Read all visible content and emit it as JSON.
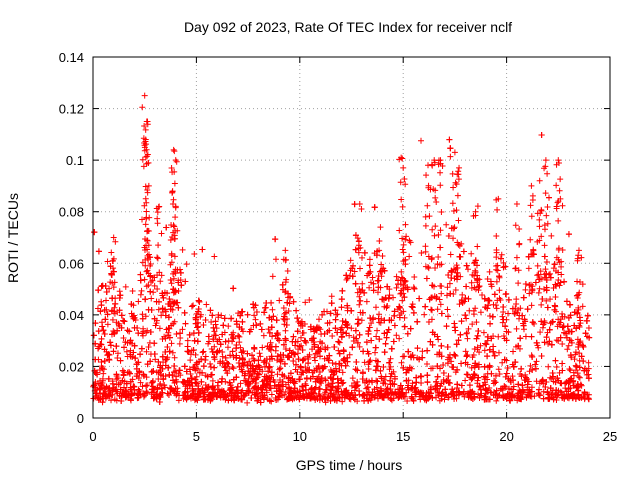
{
  "chart_data": {
    "type": "scatter",
    "title": "Day 092 of 2023, Rate Of TEC Index for receiver nclf",
    "xlabel": "GPS time / hours",
    "ylabel": "ROTI / TECUs",
    "xlim": [
      0,
      25
    ],
    "ylim": [
      0,
      0.14
    ],
    "x_ticks": [
      0,
      5,
      10,
      15,
      20,
      25
    ],
    "x_tick_labels": [
      "0",
      "5",
      "10",
      "15",
      "20",
      "25"
    ],
    "y_ticks": [
      0,
      0.02,
      0.04,
      0.06,
      0.08,
      0.1,
      0.12,
      0.14
    ],
    "y_tick_labels": [
      "0",
      "0.02",
      "0.04",
      "0.06",
      "0.08",
      "0.1",
      "0.12",
      "0.14"
    ],
    "grid": true,
    "marker": "+",
    "marker_color": "#ff0000",
    "data_x_range": [
      0,
      24
    ],
    "series": [
      {
        "name": "ROTI",
        "description_points": "dense scatter; baseline 0.005-0.04 TECU/s across 0-24 h",
        "peaks": [
          {
            "x": 2.5,
            "y": 0.125
          },
          {
            "x": 2.6,
            "y": 0.115
          },
          {
            "x": 2.55,
            "y": 0.108
          },
          {
            "x": 2.7,
            "y": 0.09
          },
          {
            "x": 3.9,
            "y": 0.104
          },
          {
            "x": 4.0,
            "y": 0.1
          },
          {
            "x": 3.85,
            "y": 0.088
          },
          {
            "x": 1.0,
            "y": 0.07
          },
          {
            "x": 3.2,
            "y": 0.082
          },
          {
            "x": 9.3,
            "y": 0.065
          },
          {
            "x": 12.9,
            "y": 0.083
          },
          {
            "x": 13.9,
            "y": 0.074
          },
          {
            "x": 14.9,
            "y": 0.101
          },
          {
            "x": 15.0,
            "y": 0.097
          },
          {
            "x": 16.2,
            "y": 0.098
          },
          {
            "x": 16.5,
            "y": 0.1
          },
          {
            "x": 16.8,
            "y": 0.1
          },
          {
            "x": 17.5,
            "y": 0.103
          },
          {
            "x": 17.7,
            "y": 0.097
          },
          {
            "x": 18.5,
            "y": 0.08
          },
          {
            "x": 19.6,
            "y": 0.085
          },
          {
            "x": 20.5,
            "y": 0.083
          },
          {
            "x": 21.2,
            "y": 0.09
          },
          {
            "x": 21.6,
            "y": 0.092
          },
          {
            "x": 21.9,
            "y": 0.1
          },
          {
            "x": 22.5,
            "y": 0.1
          },
          {
            "x": 22.6,
            "y": 0.085
          },
          {
            "x": 23.5,
            "y": 0.065
          }
        ]
      }
    ]
  }
}
